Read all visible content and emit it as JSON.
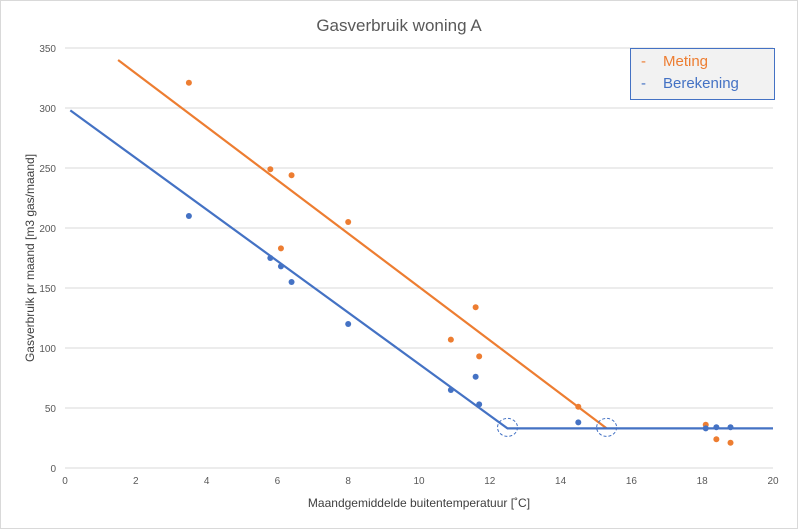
{
  "colors": {
    "meting": "#ed7d31",
    "berekening": "#4472c4",
    "grid": "#d9d9d9",
    "axis_text": "#595959"
  },
  "chart_data": {
    "type": "scatter",
    "title": "Gasverbruik woning A",
    "xlabel": "Maandgemiddelde buitentemperatuur [˚C]",
    "ylabel": "Gasverbruik pr maand [m3 gas/maand]",
    "xlim": [
      0,
      20
    ],
    "ylim": [
      0,
      350
    ],
    "x_ticks": [
      "0",
      "2",
      "4",
      "6",
      "8",
      "10",
      "12",
      "14",
      "16",
      "18",
      "20"
    ],
    "y_ticks": [
      "0",
      "50",
      "100",
      "150",
      "200",
      "250",
      "300",
      "350"
    ],
    "grid": "horizontal",
    "legend_position": "top-right",
    "series": [
      {
        "name": "Meting",
        "color": "#ed7d31",
        "points": [
          [
            3.5,
            321
          ],
          [
            5.8,
            249
          ],
          [
            6.4,
            244
          ],
          [
            6.1,
            183
          ],
          [
            8.0,
            205
          ],
          [
            11.6,
            134
          ],
          [
            10.9,
            107
          ],
          [
            11.7,
            93
          ],
          [
            14.5,
            51
          ],
          [
            18.1,
            36
          ],
          [
            18.4,
            24
          ],
          [
            18.8,
            21
          ]
        ],
        "line": [
          [
            1.5,
            340
          ],
          [
            15.3,
            33
          ]
        ]
      },
      {
        "name": "Berekening",
        "color": "#4472c4",
        "points": [
          [
            3.5,
            210
          ],
          [
            5.8,
            175
          ],
          [
            6.1,
            168
          ],
          [
            6.4,
            155
          ],
          [
            8.0,
            120
          ],
          [
            10.9,
            65
          ],
          [
            11.6,
            76
          ],
          [
            11.7,
            53
          ],
          [
            14.5,
            38
          ],
          [
            18.1,
            33
          ],
          [
            18.4,
            34
          ],
          [
            18.8,
            34
          ]
        ],
        "line": [
          [
            0.15,
            298
          ],
          [
            12.5,
            33
          ],
          [
            20,
            33
          ]
        ]
      }
    ],
    "annotations": [
      {
        "type": "dashed-circle",
        "x": 12.5,
        "y": 33
      },
      {
        "type": "dashed-circle",
        "x": 15.3,
        "y": 33
      }
    ]
  },
  "legend": [
    {
      "dash": "-",
      "label": "Meting",
      "color": "#ed7d31"
    },
    {
      "dash": "-",
      "label": "Berekening",
      "color": "#4472c4"
    }
  ]
}
